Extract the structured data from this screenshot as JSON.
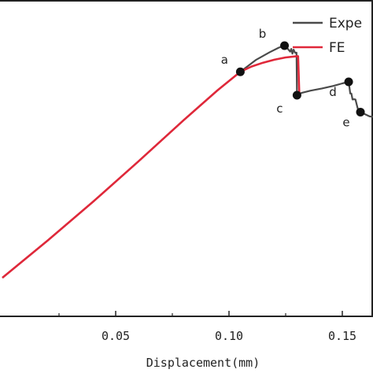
{
  "chart_data": {
    "type": "line",
    "xlabel": "Displacement(mm)",
    "ylabel": "",
    "xlim": [
      0.0,
      0.175
    ],
    "x_ticks": [
      {
        "value": 0.05,
        "label": "0.05"
      },
      {
        "value": 0.1,
        "label": "0.10"
      },
      {
        "value": 0.15,
        "label": "0.15"
      }
    ],
    "legend": {
      "placement": "top-right",
      "entries": [
        {
          "label": "Expe",
          "color": "#4a4a4a"
        },
        {
          "label": "FE",
          "color": "#e0283a"
        }
      ]
    },
    "series": [
      {
        "name": "Expe",
        "color": "#4a4a4a",
        "x": [
          0.0,
          0.02,
          0.04,
          0.06,
          0.08,
          0.095,
          0.105,
          0.112,
          0.118,
          0.122,
          0.1245,
          0.1255,
          0.127,
          0.1275,
          0.128,
          0.1285,
          0.1292,
          0.1298,
          0.13,
          0.1305,
          0.132,
          0.136,
          0.141,
          0.146,
          0.15,
          0.1528,
          0.1535,
          0.154,
          0.1545,
          0.1552,
          0.1558,
          0.1565,
          0.1572,
          0.158,
          0.162,
          0.166,
          0.17,
          0.175
        ],
        "y": [
          0.0,
          0.148,
          0.302,
          0.462,
          0.626,
          0.745,
          0.818,
          0.866,
          0.896,
          0.914,
          0.922,
          0.914,
          0.898,
          0.909,
          0.89,
          0.906,
          0.893,
          0.894,
          0.725,
          0.728,
          0.734,
          0.743,
          0.752,
          0.762,
          0.772,
          0.778,
          0.732,
          0.732,
          0.708,
          0.709,
          0.708,
          0.683,
          0.659,
          0.658,
          0.641,
          0.636,
          0.641,
          0.65
        ]
      },
      {
        "name": "FE",
        "color": "#e0283a",
        "x": [
          0.0,
          0.02,
          0.04,
          0.06,
          0.08,
          0.095,
          0.105,
          0.11,
          0.115,
          0.12,
          0.125,
          0.13,
          0.1305,
          0.131
        ],
        "y": [
          0.0,
          0.148,
          0.302,
          0.462,
          0.626,
          0.745,
          0.818,
          0.839,
          0.854,
          0.866,
          0.875,
          0.88,
          0.88,
          0.735
        ]
      }
    ],
    "markers": [
      {
        "label": "a",
        "x": 0.105,
        "y": 0.818
      },
      {
        "label": "b",
        "x": 0.1245,
        "y": 0.922
      },
      {
        "label": "c",
        "x": 0.13,
        "y": 0.725
      },
      {
        "label": "d",
        "x": 0.1528,
        "y": 0.778
      },
      {
        "label": "e",
        "x": 0.158,
        "y": 0.658
      }
    ]
  }
}
